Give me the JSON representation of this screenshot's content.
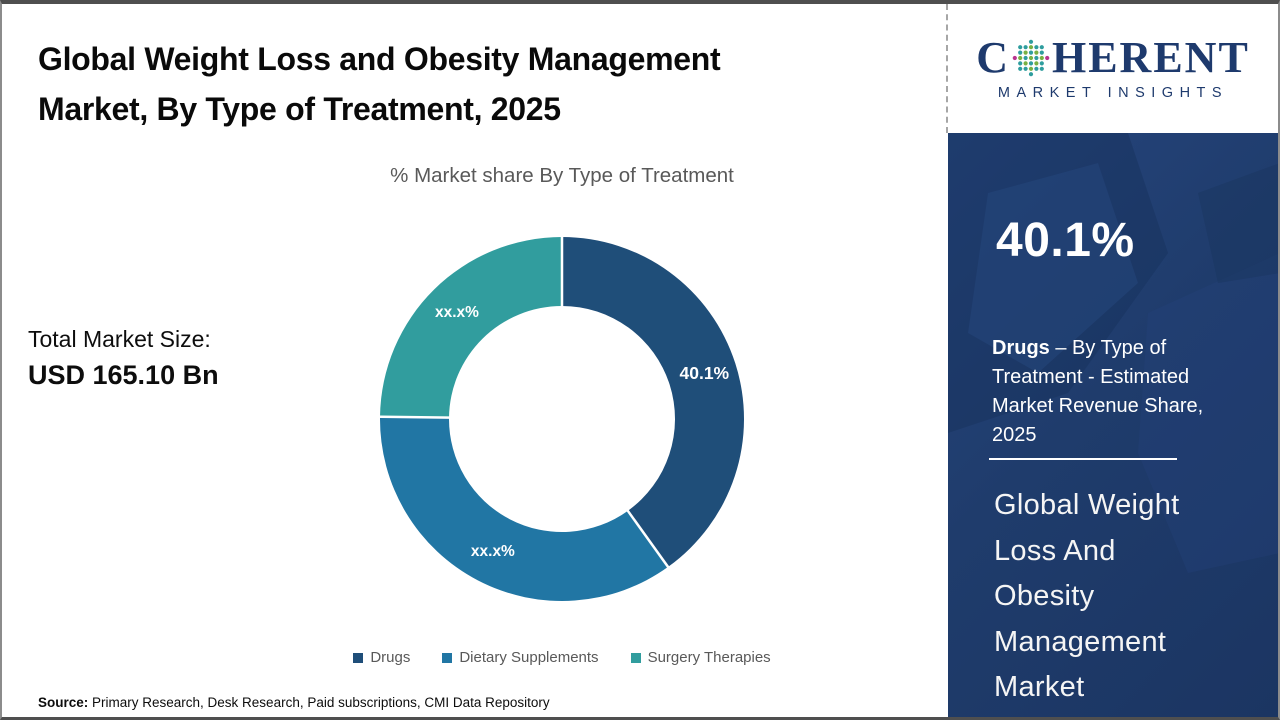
{
  "header": {
    "title_line1": "Global Weight Loss and Obesity Management",
    "title_line2": "Market, By Type of Treatment, 2025"
  },
  "logo": {
    "part1": "C",
    "part2": "HERENT",
    "subtitle": "MARKET INSIGHTS",
    "globe_icon": "coherent-dot-globe-icon"
  },
  "left_panel": {
    "total_label": "Total Market Size:",
    "total_value": "USD 165.10 Bn"
  },
  "chart_data": {
    "type": "pie",
    "subtype": "donut",
    "title": "% Market share By Type of Treatment",
    "categories": [
      "Drugs",
      "Dietary Supplements",
      "Surgery Therapies"
    ],
    "display_labels": [
      "40.1%",
      "xx.x%",
      "xx.x%"
    ],
    "values_pct_estimated": [
      40.1,
      35.1,
      24.8
    ],
    "colors": [
      "#1f4e79",
      "#2176a4",
      "#319d9e"
    ],
    "start_angle_deg": 0,
    "clockwise": true,
    "inner_radius_ratio": 0.62,
    "separator_color": "#ffffff",
    "legend_position": "bottom"
  },
  "sidebar": {
    "highlight_value": "40.1%",
    "caption_bold": "Drugs",
    "caption_rest": " – By Type of Treatment - Estimated Market Revenue Share, 2025",
    "market_name_lines": [
      "Global Weight",
      "Loss And",
      "Obesity",
      "Management",
      "Market"
    ],
    "background_color": "#1f3c6c"
  },
  "footer": {
    "source_label": "Source:",
    "source_text": " Primary Research, Desk Research, Paid subscriptions, CMI Data Repository"
  },
  "brand_colors": {
    "navy": "#1e3a6d",
    "dot_green": "#79b143",
    "dot_teal": "#2e9d9e",
    "dot_magenta": "#b9358f"
  }
}
